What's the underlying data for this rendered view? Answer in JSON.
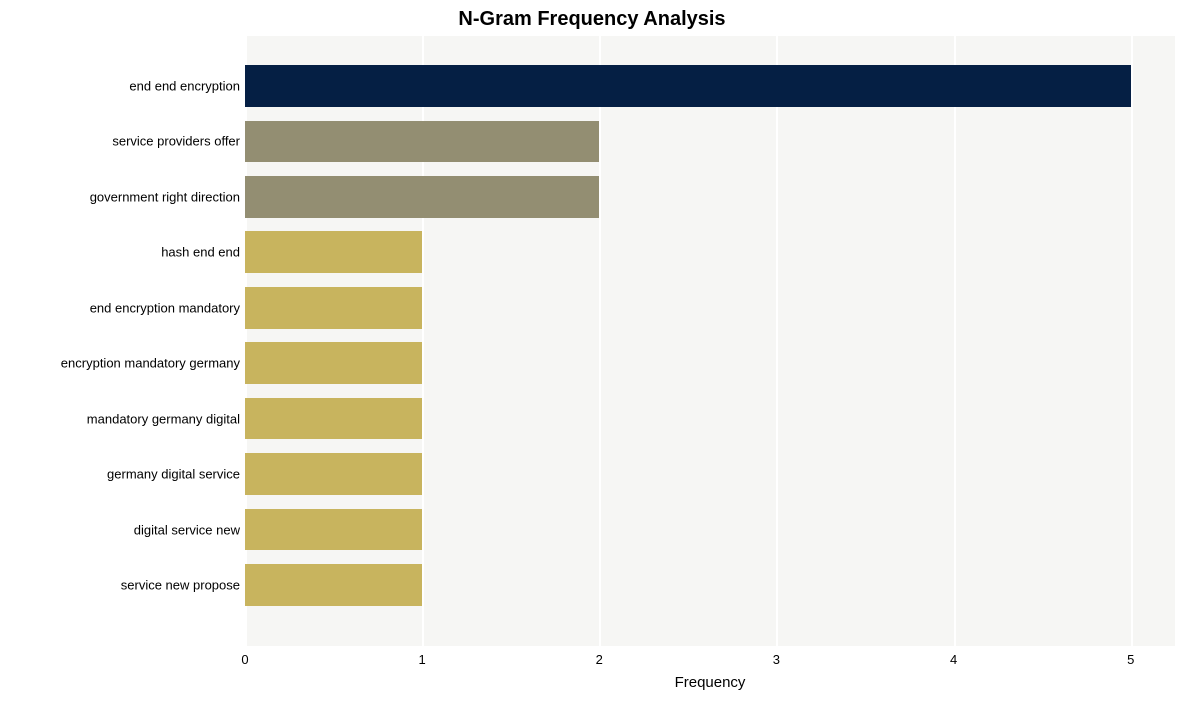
{
  "chart": {
    "type": "bar-horizontal",
    "title": "N-Gram Frequency Analysis",
    "title_fontsize": 20,
    "title_fontweight": "bold",
    "title_color": "#000000",
    "xlabel": "Frequency",
    "xlabel_fontsize": 15,
    "xlabel_color": "#000000",
    "background_color": "#ffffff",
    "plot_bg_color": "#f6f6f4",
    "grid_color": "#ffffff",
    "grid_linewidth": 2,
    "x_min": 0,
    "x_max": 5.25,
    "x_ticks": [
      0,
      1,
      2,
      3,
      4,
      5
    ],
    "x_tick_fontsize": 13,
    "x_tick_color": "#000000",
    "y_tick_fontsize": 13,
    "y_tick_color": "#000000",
    "bar_relative_height": 0.75,
    "categories": [
      "end end encryption",
      "service providers offer",
      "government right direction",
      "hash end end",
      "end encryption mandatory",
      "encryption mandatory germany",
      "mandatory germany digital",
      "germany digital service",
      "digital service new",
      "service new propose"
    ],
    "values": [
      5,
      2,
      2,
      1,
      1,
      1,
      1,
      1,
      1,
      1
    ],
    "bar_colors": [
      "#051f44",
      "#938e72",
      "#938e72",
      "#c8b45e",
      "#c8b45e",
      "#c8b45e",
      "#c8b45e",
      "#c8b45e",
      "#c8b45e",
      "#c8b45e"
    ]
  }
}
